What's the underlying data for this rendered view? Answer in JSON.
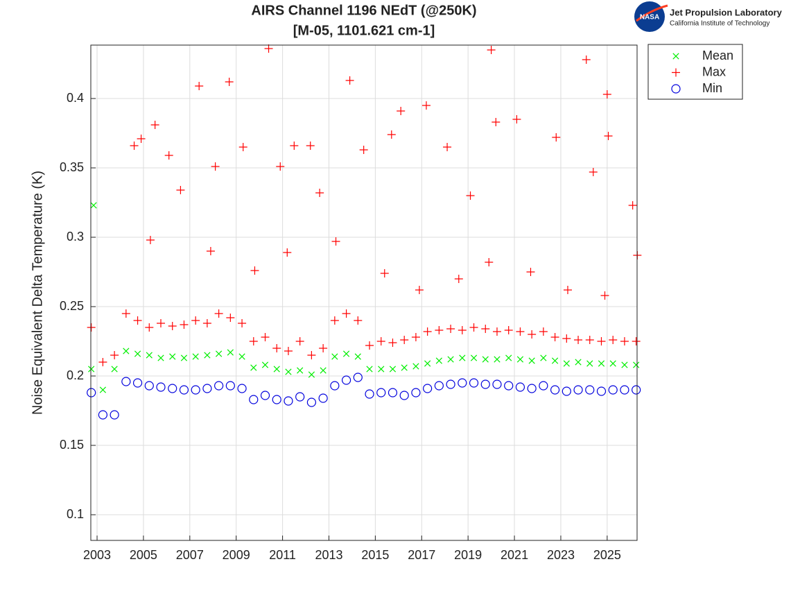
{
  "chart_data": {
    "type": "scatter",
    "title": "AIRS Channel 1196 NEdT (@250K)",
    "subtitle": "[M-05, 1101.621 cm-1]",
    "y_label": "Noise Equivalent Delta Temperature (K)",
    "logo": {
      "badge": "NASA",
      "text": "Jet Propulsion Laboratory",
      "subtext": "California Institute of Technology"
    },
    "xlim": [
      2002.73,
      2026.29
    ],
    "xticks": [
      2003,
      2005,
      2007,
      2009,
      2011,
      2013,
      2015,
      2017,
      2019,
      2021,
      2023,
      2025
    ],
    "ylim": [
      0.0815,
      0.4385
    ],
    "yticks": [
      0.1,
      0.15,
      0.2,
      0.25,
      0.3,
      0.35,
      0.4
    ],
    "grid": true,
    "legend": "outside-top-right",
    "series": [
      {
        "name": "Mean",
        "color": "#00ee00",
        "marker": "x",
        "x": [
          2002.75,
          2003.25,
          2003.75,
          2004.25,
          2004.75,
          2005.25,
          2005.75,
          2006.25,
          2006.75,
          2007.25,
          2007.75,
          2008.25,
          2008.75,
          2009.25,
          2009.75,
          2010.25,
          2010.75,
          2011.25,
          2011.75,
          2012.25,
          2012.75,
          2013.25,
          2013.75,
          2014.25,
          2014.75,
          2015.25,
          2015.75,
          2016.25,
          2016.75,
          2017.25,
          2017.75,
          2018.25,
          2018.75,
          2019.25,
          2019.75,
          2020.25,
          2020.75,
          2021.25,
          2021.75,
          2022.25,
          2022.75,
          2023.25,
          2023.75,
          2024.25,
          2024.75,
          2025.25,
          2025.75,
          2026.25,
          2002.85
        ],
        "values": [
          0.205,
          0.19,
          0.205,
          0.218,
          0.216,
          0.215,
          0.213,
          0.214,
          0.213,
          0.214,
          0.215,
          0.216,
          0.217,
          0.214,
          0.206,
          0.208,
          0.205,
          0.203,
          0.204,
          0.201,
          0.204,
          0.214,
          0.216,
          0.214,
          0.205,
          0.205,
          0.205,
          0.206,
          0.207,
          0.209,
          0.211,
          0.212,
          0.213,
          0.213,
          0.212,
          0.212,
          0.213,
          0.212,
          0.211,
          0.213,
          0.211,
          0.209,
          0.21,
          0.209,
          0.209,
          0.209,
          0.208,
          0.208,
          0.323
        ]
      },
      {
        "name": "Max",
        "color": "#ff0000",
        "marker": "+",
        "x": [
          2002.75,
          2003.25,
          2003.75,
          2004.25,
          2004.75,
          2005.25,
          2005.75,
          2006.25,
          2006.75,
          2007.25,
          2007.75,
          2008.25,
          2008.75,
          2009.25,
          2009.75,
          2010.25,
          2010.75,
          2011.25,
          2011.75,
          2012.25,
          2012.75,
          2013.25,
          2013.75,
          2014.25,
          2014.75,
          2015.25,
          2015.75,
          2016.25,
          2016.75,
          2017.25,
          2017.75,
          2018.25,
          2018.75,
          2019.25,
          2019.75,
          2020.25,
          2020.75,
          2021.25,
          2021.75,
          2022.25,
          2022.75,
          2023.25,
          2023.75,
          2024.25,
          2024.75,
          2025.25,
          2025.75,
          2026.25,
          2004.6,
          2004.9,
          2005.5,
          2006.1,
          2006.6,
          2007.4,
          2008.1,
          2008.7,
          2009.3,
          2010.4,
          2010.9,
          2011.5,
          2012.2,
          2012.6,
          2013.9,
          2014.5,
          2015.7,
          2016.1,
          2017.2,
          2018.1,
          2019.1,
          2020.0,
          2020.2,
          2021.1,
          2022.8,
          2024.1,
          2024.4,
          2025.0,
          2025.05,
          2026.1,
          2005.3,
          2007.9,
          2009.8,
          2011.2,
          2013.3,
          2015.4,
          2016.9,
          2018.6,
          2019.9,
          2021.7,
          2023.3,
          2024.9,
          2026.3
        ],
        "values": [
          0.235,
          0.21,
          0.215,
          0.245,
          0.24,
          0.235,
          0.238,
          0.236,
          0.237,
          0.24,
          0.238,
          0.245,
          0.242,
          0.238,
          0.225,
          0.228,
          0.22,
          0.218,
          0.225,
          0.215,
          0.22,
          0.24,
          0.245,
          0.24,
          0.222,
          0.225,
          0.224,
          0.226,
          0.228,
          0.232,
          0.233,
          0.234,
          0.233,
          0.235,
          0.234,
          0.232,
          0.233,
          0.232,
          0.23,
          0.232,
          0.228,
          0.227,
          0.226,
          0.226,
          0.225,
          0.226,
          0.225,
          0.225,
          0.366,
          0.371,
          0.381,
          0.359,
          0.334,
          0.409,
          0.351,
          0.412,
          0.365,
          0.436,
          0.351,
          0.366,
          0.366,
          0.332,
          0.413,
          0.363,
          0.374,
          0.391,
          0.395,
          0.365,
          0.33,
          0.435,
          0.383,
          0.385,
          0.372,
          0.428,
          0.347,
          0.403,
          0.373,
          0.323,
          0.298,
          0.29,
          0.276,
          0.289,
          0.297,
          0.274,
          0.262,
          0.27,
          0.282,
          0.275,
          0.262,
          0.258,
          0.287
        ]
      },
      {
        "name": "Min",
        "color": "#0000dd",
        "marker": "o",
        "x": [
          2002.75,
          2003.25,
          2003.75,
          2004.25,
          2004.75,
          2005.25,
          2005.75,
          2006.25,
          2006.75,
          2007.25,
          2007.75,
          2008.25,
          2008.75,
          2009.25,
          2009.75,
          2010.25,
          2010.75,
          2011.25,
          2011.75,
          2012.25,
          2012.75,
          2013.25,
          2013.75,
          2014.25,
          2014.75,
          2015.25,
          2015.75,
          2016.25,
          2016.75,
          2017.25,
          2017.75,
          2018.25,
          2018.75,
          2019.25,
          2019.75,
          2020.25,
          2020.75,
          2021.25,
          2021.75,
          2022.25,
          2022.75,
          2023.25,
          2023.75,
          2024.25,
          2024.75,
          2025.25,
          2025.75,
          2026.25
        ],
        "values": [
          0.188,
          0.172,
          0.172,
          0.196,
          0.195,
          0.193,
          0.192,
          0.191,
          0.19,
          0.19,
          0.191,
          0.193,
          0.193,
          0.191,
          0.183,
          0.186,
          0.183,
          0.182,
          0.185,
          0.181,
          0.184,
          0.193,
          0.197,
          0.199,
          0.187,
          0.188,
          0.188,
          0.186,
          0.188,
          0.191,
          0.193,
          0.194,
          0.195,
          0.195,
          0.194,
          0.194,
          0.193,
          0.192,
          0.191,
          0.193,
          0.19,
          0.189,
          0.19,
          0.19,
          0.189,
          0.19,
          0.19,
          0.19
        ]
      }
    ]
  }
}
